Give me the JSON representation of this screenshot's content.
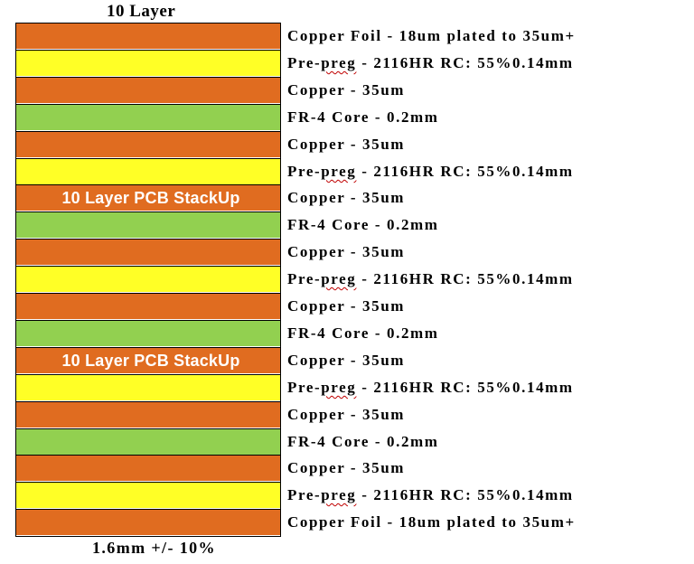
{
  "title": "10 Layer",
  "footer": "1.6mm +/- 10%",
  "watermark_text": "10 Layer PCB StackUp",
  "colors": {
    "copper": "#e06c20",
    "prepreg": "#ffff26",
    "core": "#92d050",
    "watermark": "#ffffff"
  },
  "layers": [
    {
      "type": "copper",
      "label": "Copper Foil - 18um plated to 35um+"
    },
    {
      "type": "prepreg",
      "label": "Pre-preg - 2116HR RC: 55%0.14mm"
    },
    {
      "type": "copper",
      "label": "Copper - 35um"
    },
    {
      "type": "core",
      "label": "FR-4 Core - 0.2mm"
    },
    {
      "type": "copper",
      "label": "Copper - 35um"
    },
    {
      "type": "prepreg",
      "label": "Pre-preg - 2116HR RC: 55%0.14mm"
    },
    {
      "type": "copper",
      "label": "Copper - 35um",
      "watermark": true
    },
    {
      "type": "core",
      "label": "FR-4 Core - 0.2mm"
    },
    {
      "type": "copper",
      "label": "Copper - 35um"
    },
    {
      "type": "prepreg",
      "label": "Pre-preg - 2116HR RC: 55%0.14mm"
    },
    {
      "type": "copper",
      "label": "Copper - 35um"
    },
    {
      "type": "core",
      "label": "FR-4 Core - 0.2mm"
    },
    {
      "type": "copper",
      "label": "Copper - 35um",
      "watermark": true
    },
    {
      "type": "prepreg",
      "label": "Pre-preg - 2116HR RC: 55%0.14mm"
    },
    {
      "type": "copper",
      "label": "Copper - 35um"
    },
    {
      "type": "core",
      "label": "FR-4 Core - 0.2mm"
    },
    {
      "type": "copper",
      "label": "Copper - 35um"
    },
    {
      "type": "prepreg",
      "label": "Pre-preg - 2116HR RC: 55%0.14mm"
    },
    {
      "type": "copper",
      "label": "Copper Foil - 18um plated to 35um+"
    }
  ]
}
